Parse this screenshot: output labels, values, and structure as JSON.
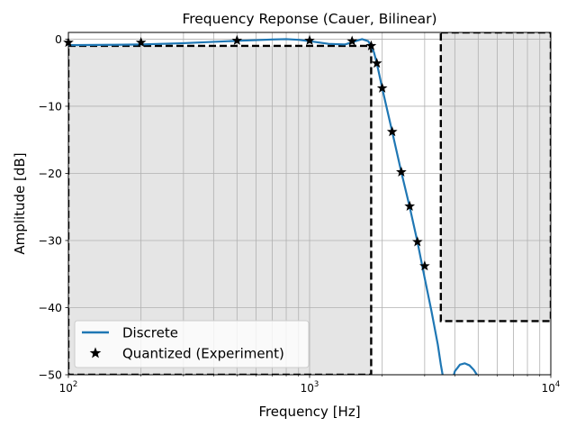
{
  "chart_data": {
    "type": "line",
    "title": "Frequency Reponse (Cauer, Bilinear)",
    "xlabel": "Frequency [Hz]",
    "ylabel": "Amplitude [dB]",
    "xscale": "log",
    "xlim": [
      100,
      10000
    ],
    "ylim": [
      -50,
      1
    ],
    "grid": true,
    "legend_position": "lower-left",
    "x_ticks": [
      {
        "value": 100,
        "base": "10",
        "exp": "2"
      },
      {
        "value": 1000,
        "base": "10",
        "exp": "3"
      },
      {
        "value": 10000,
        "base": "10",
        "exp": "4"
      }
    ],
    "y_ticks": [
      {
        "value": 0,
        "label": "0"
      },
      {
        "value": -10,
        "label": "−10"
      },
      {
        "value": -20,
        "label": "−20"
      },
      {
        "value": -30,
        "label": "−30"
      },
      {
        "value": -40,
        "label": "−40"
      },
      {
        "value": -50,
        "label": "−50"
      }
    ],
    "spec_regions": [
      {
        "kind": "passband",
        "x": [
          100,
          1800
        ],
        "y": [
          -50,
          -1
        ]
      },
      {
        "kind": "stopband",
        "x": [
          3500,
          10000
        ],
        "y": [
          -42,
          1
        ]
      }
    ],
    "series": [
      {
        "name": "Discrete",
        "style": "line",
        "color": "#1f77b4",
        "x": [
          100,
          150,
          200,
          300,
          400,
          500,
          600,
          700,
          800,
          900,
          1000,
          1200,
          1400,
          1550,
          1650,
          1750,
          1800,
          1850,
          1900,
          2000,
          2200,
          2400,
          2600,
          2800,
          3000,
          3200,
          3400,
          3500,
          3600,
          3700,
          3800,
          3900,
          4000,
          4200,
          4400,
          4600,
          4800,
          5000,
          5100
        ],
        "y": [
          -0.9,
          -0.85,
          -0.8,
          -0.6,
          -0.4,
          -0.25,
          -0.15,
          -0.05,
          0,
          -0.1,
          -0.3,
          -0.7,
          -0.8,
          -0.3,
          0,
          -0.3,
          -1.0,
          -2.0,
          -3.6,
          -7.3,
          -13.8,
          -19.8,
          -25.0,
          -30.2,
          -35.6,
          -40.5,
          -45.5,
          -48.5,
          -51,
          -53,
          -53,
          -51,
          -49.5,
          -48.5,
          -48.3,
          -48.6,
          -49.3,
          -50.3,
          -51
        ]
      },
      {
        "name": "Quantized (Experiment)",
        "style": "marker",
        "marker": "star",
        "color": "#000000",
        "x": [
          100,
          200,
          500,
          1000,
          1500,
          1800,
          1900,
          2000,
          2200,
          2400,
          2600,
          2800,
          3000
        ],
        "y": [
          -0.5,
          -0.5,
          -0.2,
          -0.2,
          -0.3,
          -1.0,
          -3.6,
          -7.3,
          -13.8,
          -19.8,
          -24.9,
          -30.2,
          -33.8
        ]
      }
    ]
  }
}
